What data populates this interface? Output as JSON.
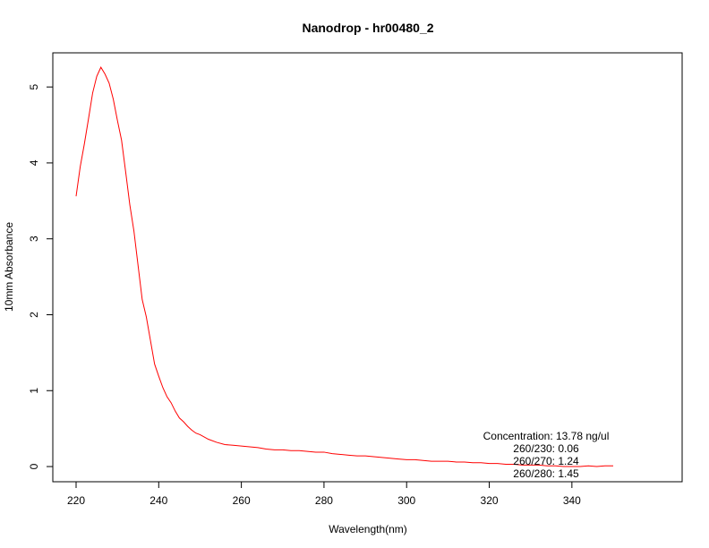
{
  "chart_data": {
    "type": "line",
    "title": "Nanodrop - hr00480_2",
    "xlabel": "Wavelength(nm)",
    "ylabel": "10mm Absorbance",
    "xlim": [
      220,
      350
    ],
    "ylim": [
      -0.2,
      5.45
    ],
    "xticks": [
      220,
      240,
      260,
      280,
      300,
      320,
      340
    ],
    "yticks": [
      0,
      1,
      2,
      3,
      4,
      5
    ],
    "grid": false,
    "series": [
      {
        "color": "#ff0000",
        "x": [
          220,
          221,
          222,
          223,
          224,
          225,
          226,
          227,
          228,
          229,
          230,
          231,
          232,
          233,
          234,
          235,
          236,
          237,
          238,
          239,
          240,
          241,
          242,
          243,
          244,
          245,
          246,
          247,
          248,
          249,
          250,
          252,
          254,
          256,
          258,
          260,
          262,
          264,
          266,
          268,
          270,
          272,
          274,
          276,
          278,
          280,
          282,
          284,
          286,
          288,
          290,
          292,
          294,
          296,
          298,
          300,
          302,
          304,
          306,
          308,
          310,
          312,
          314,
          316,
          318,
          320,
          322,
          324,
          326,
          328,
          330,
          332,
          334,
          336,
          338,
          340,
          342,
          344,
          346,
          348,
          350
        ],
        "y": [
          3.56,
          3.95,
          4.25,
          4.58,
          4.92,
          5.14,
          5.26,
          5.17,
          5.05,
          4.84,
          4.56,
          4.3,
          3.88,
          3.45,
          3.1,
          2.65,
          2.2,
          1.97,
          1.66,
          1.35,
          1.19,
          1.04,
          0.92,
          0.84,
          0.73,
          0.64,
          0.59,
          0.53,
          0.48,
          0.44,
          0.42,
          0.36,
          0.32,
          0.29,
          0.28,
          0.27,
          0.26,
          0.25,
          0.23,
          0.22,
          0.22,
          0.21,
          0.21,
          0.2,
          0.19,
          0.19,
          0.17,
          0.16,
          0.15,
          0.14,
          0.14,
          0.13,
          0.12,
          0.11,
          0.1,
          0.09,
          0.09,
          0.08,
          0.07,
          0.07,
          0.07,
          0.06,
          0.06,
          0.05,
          0.05,
          0.04,
          0.04,
          0.03,
          0.03,
          0.02,
          0.02,
          0.02,
          0.01,
          0.01,
          0.0,
          0.0,
          0.0,
          0.01,
          0.0,
          0.01,
          0.01
        ]
      }
    ],
    "annotations": [
      "Concentration: 13.78 ng/ul",
      "260/230: 0.06",
      "260/270: 1.24",
      "260/280: 1.45"
    ]
  }
}
